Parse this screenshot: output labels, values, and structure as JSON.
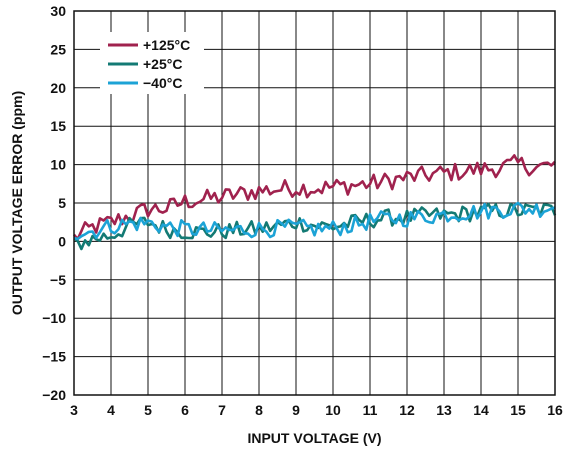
{
  "chart_data": {
    "type": "line",
    "xlabel": "INPUT VOLTAGE (V)",
    "ylabel": "OUTPUT VOLTAGE ERROR (ppm)",
    "xlim": [
      3,
      16
    ],
    "ylim": [
      -20,
      30
    ],
    "x_ticks": [
      "3",
      "4",
      "5",
      "6",
      "7",
      "8",
      "9",
      "10",
      "11",
      "12",
      "13",
      "14",
      "15",
      "16"
    ],
    "y_ticks": [
      "30",
      "25",
      "20",
      "15",
      "10",
      "5",
      "0",
      "−5",
      "−10",
      "−15",
      "−20"
    ],
    "grid": true,
    "legend_position": "top-left",
    "x": [
      3.0,
      3.5,
      4.0,
      4.5,
      5.0,
      5.5,
      6.0,
      6.5,
      7.0,
      7.5,
      8.0,
      8.5,
      9.0,
      9.5,
      10.0,
      10.5,
      11.0,
      11.5,
      12.0,
      12.5,
      13.0,
      13.5,
      14.0,
      14.5,
      15.0,
      15.5,
      16.0
    ],
    "series": [
      {
        "name": "+125°C",
        "color": "#a0224e",
        "values": [
          0.5,
          1.8,
          2.5,
          3.3,
          4.2,
          4.3,
          5.2,
          5.5,
          5.8,
          6.2,
          6.6,
          6.8,
          7.0,
          6.9,
          7.1,
          7.3,
          7.5,
          7.9,
          8.3,
          8.6,
          8.9,
          9.1,
          9.4,
          9.6,
          10.1,
          9.6,
          10.0
        ]
      },
      {
        "name": "+25°C",
        "color": "#137a74",
        "values": [
          -0.5,
          0.3,
          0.8,
          2.0,
          2.5,
          1.6,
          1.3,
          1.2,
          1.3,
          1.5,
          1.6,
          2.0,
          2.5,
          2.1,
          1.9,
          2.4,
          2.8,
          3.1,
          3.1,
          3.4,
          3.4,
          3.6,
          3.8,
          4.0,
          3.9,
          4.1,
          4.0
        ]
      },
      {
        "name": "−40°C",
        "color": "#1ca3d6",
        "values": [
          1.2,
          1.3,
          2.0,
          2.3,
          2.4,
          1.9,
          1.6,
          1.5,
          1.4,
          1.5,
          1.6,
          1.7,
          1.8,
          1.6,
          1.7,
          2.1,
          2.6,
          3.0,
          3.0,
          3.2,
          3.5,
          3.7,
          3.9,
          4.1,
          4.3,
          4.2,
          4.6
        ]
      }
    ]
  }
}
